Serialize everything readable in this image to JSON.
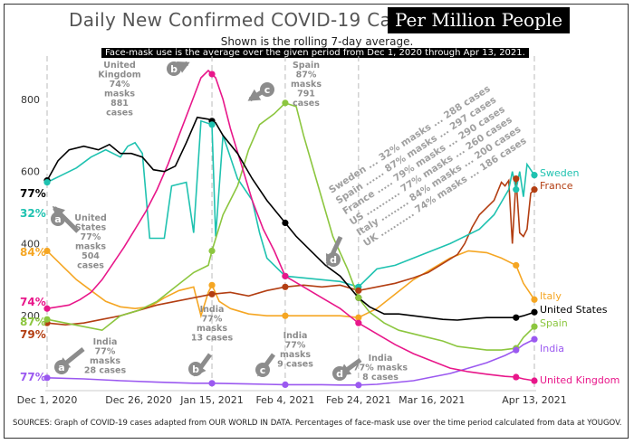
{
  "title": "Daily New Confirmed COVID-19 Cases",
  "title_box": "Per   Million People",
  "subtitle": "Shown is the rolling 7-day average.",
  "mask_note": "Face-mask use is the average over the given period from Dec 1, 2020 through Apr 13, 2021.",
  "sources": "SOURCES: Graph of COVID-19 cases adapted from OUR WORLD IN DATA.  Percentages of face-mask use over the time period calculated from data at YOUGOV.",
  "colors": {
    "United States": "#000000",
    "Sweden": "#1fc2b0",
    "France": "#b33e12",
    "Italy": "#f5a623",
    "Spain": "#8cc63f",
    "India": "#9b59f0",
    "United Kingdom": "#e8178a",
    "annotation": "#8c8c8c"
  },
  "chart_data": {
    "type": "line",
    "title": "Daily New Confirmed COVID-19 Cases Per Million People",
    "xlabel": "",
    "ylabel": "",
    "ylim": [
      0,
      900
    ],
    "yticks": [
      200,
      400,
      600,
      800
    ],
    "xlim": [
      0,
      133
    ],
    "xticks": [
      {
        "day": 0,
        "label": "Dec 1, 2020"
      },
      {
        "day": 25,
        "label": "Dec 26, 2020"
      },
      {
        "day": 45,
        "label": "Jan 15, 2021"
      },
      {
        "day": 65,
        "label": "Feb 4, 2021"
      },
      {
        "day": 85,
        "label": "Feb 24, 2021"
      },
      {
        "day": 105,
        "label": "Mar 16, 2021"
      },
      {
        "day": 133,
        "label": "Apr 13, 2021"
      }
    ],
    "vlines": [
      0,
      45,
      65,
      85,
      133
    ],
    "marker_days": [
      0,
      45,
      65,
      85,
      128,
      133
    ],
    "series": [
      {
        "name": "United States",
        "start_label": "77%",
        "points": [
          [
            0,
            575
          ],
          [
            3,
            630
          ],
          [
            6,
            660
          ],
          [
            10,
            670
          ],
          [
            14,
            660
          ],
          [
            17,
            675
          ],
          [
            20,
            650
          ],
          [
            23,
            650
          ],
          [
            26,
            640
          ],
          [
            29,
            605
          ],
          [
            32,
            600
          ],
          [
            35,
            615
          ],
          [
            38,
            680
          ],
          [
            41,
            750
          ],
          [
            44,
            745
          ],
          [
            46,
            735
          ],
          [
            48,
            700
          ],
          [
            52,
            650
          ],
          [
            56,
            580
          ],
          [
            60,
            520
          ],
          [
            64,
            470
          ],
          [
            68,
            420
          ],
          [
            72,
            380
          ],
          [
            76,
            340
          ],
          [
            80,
            310
          ],
          [
            85,
            250
          ],
          [
            88,
            225
          ],
          [
            92,
            205
          ],
          [
            96,
            205
          ],
          [
            100,
            200
          ],
          [
            104,
            195
          ],
          [
            108,
            190
          ],
          [
            112,
            188
          ],
          [
            116,
            192
          ],
          [
            120,
            195
          ],
          [
            124,
            195
          ],
          [
            128,
            195
          ],
          [
            130,
            200
          ],
          [
            133,
            210
          ]
        ]
      },
      {
        "name": "Sweden",
        "start_label": "32%",
        "points": [
          [
            0,
            570
          ],
          [
            4,
            590
          ],
          [
            8,
            610
          ],
          [
            12,
            640
          ],
          [
            16,
            660
          ],
          [
            20,
            640
          ],
          [
            22,
            670
          ],
          [
            24,
            680
          ],
          [
            26,
            650
          ],
          [
            28,
            415
          ],
          [
            32,
            415
          ],
          [
            34,
            560
          ],
          [
            38,
            570
          ],
          [
            40,
            430
          ],
          [
            42,
            740
          ],
          [
            45,
            730
          ],
          [
            46,
            420
          ],
          [
            48,
            700
          ],
          [
            50,
            640
          ],
          [
            52,
            580
          ],
          [
            56,
            520
          ],
          [
            58,
            430
          ],
          [
            60,
            360
          ],
          [
            65,
            310
          ],
          [
            70,
            305
          ],
          [
            75,
            300
          ],
          [
            80,
            295
          ],
          [
            85,
            280
          ],
          [
            90,
            330
          ],
          [
            95,
            340
          ],
          [
            100,
            360
          ],
          [
            105,
            380
          ],
          [
            110,
            400
          ],
          [
            114,
            420
          ],
          [
            118,
            440
          ],
          [
            122,
            480
          ],
          [
            126,
            550
          ],
          [
            127,
            600
          ],
          [
            128,
            550
          ],
          [
            129,
            600
          ],
          [
            130,
            530
          ],
          [
            131,
            620
          ],
          [
            133,
            590
          ]
        ]
      },
      {
        "name": "France",
        "start_label": "79%",
        "points": [
          [
            0,
            180
          ],
          [
            5,
            175
          ],
          [
            10,
            180
          ],
          [
            15,
            190
          ],
          [
            20,
            200
          ],
          [
            25,
            215
          ],
          [
            30,
            230
          ],
          [
            35,
            240
          ],
          [
            40,
            250
          ],
          [
            45,
            260
          ],
          [
            50,
            265
          ],
          [
            55,
            255
          ],
          [
            60,
            270
          ],
          [
            65,
            280
          ],
          [
            70,
            285
          ],
          [
            75,
            280
          ],
          [
            80,
            285
          ],
          [
            85,
            270
          ],
          [
            90,
            280
          ],
          [
            95,
            290
          ],
          [
            100,
            305
          ],
          [
            104,
            320
          ],
          [
            108,
            345
          ],
          [
            112,
            370
          ],
          [
            114,
            400
          ],
          [
            116,
            445
          ],
          [
            118,
            480
          ],
          [
            120,
            500
          ],
          [
            122,
            520
          ],
          [
            124,
            570
          ],
          [
            125,
            560
          ],
          [
            126,
            575
          ],
          [
            127,
            400
          ],
          [
            128,
            580
          ],
          [
            129,
            430
          ],
          [
            130,
            420
          ],
          [
            131,
            440
          ],
          [
            132,
            540
          ],
          [
            133,
            550
          ]
        ]
      },
      {
        "name": "Italy",
        "start_label": "84%",
        "points": [
          [
            0,
            380
          ],
          [
            4,
            340
          ],
          [
            8,
            300
          ],
          [
            12,
            270
          ],
          [
            16,
            240
          ],
          [
            20,
            225
          ],
          [
            24,
            220
          ],
          [
            28,
            225
          ],
          [
            32,
            250
          ],
          [
            36,
            270
          ],
          [
            40,
            280
          ],
          [
            42,
            200
          ],
          [
            44,
            265
          ],
          [
            45,
            285
          ],
          [
            47,
            240
          ],
          [
            50,
            220
          ],
          [
            55,
            205
          ],
          [
            60,
            200
          ],
          [
            65,
            200
          ],
          [
            70,
            200
          ],
          [
            75,
            200
          ],
          [
            80,
            200
          ],
          [
            85,
            195
          ],
          [
            90,
            220
          ],
          [
            95,
            260
          ],
          [
            100,
            300
          ],
          [
            105,
            330
          ],
          [
            110,
            360
          ],
          [
            115,
            380
          ],
          [
            120,
            375
          ],
          [
            124,
            360
          ],
          [
            128,
            340
          ],
          [
            130,
            290
          ],
          [
            133,
            245
          ]
        ]
      },
      {
        "name": "Spain",
        "start_label": "87%",
        "points": [
          [
            0,
            190
          ],
          [
            5,
            180
          ],
          [
            10,
            170
          ],
          [
            15,
            160
          ],
          [
            20,
            200
          ],
          [
            25,
            215
          ],
          [
            30,
            240
          ],
          [
            35,
            280
          ],
          [
            40,
            320
          ],
          [
            44,
            340
          ],
          [
            45,
            380
          ],
          [
            48,
            480
          ],
          [
            52,
            560
          ],
          [
            55,
            660
          ],
          [
            58,
            730
          ],
          [
            62,
            760
          ],
          [
            65,
            790
          ],
          [
            68,
            780
          ],
          [
            70,
            700
          ],
          [
            74,
            560
          ],
          [
            78,
            420
          ],
          [
            82,
            330
          ],
          [
            85,
            250
          ],
          [
            88,
            210
          ],
          [
            92,
            180
          ],
          [
            96,
            160
          ],
          [
            100,
            150
          ],
          [
            104,
            140
          ],
          [
            108,
            130
          ],
          [
            112,
            115
          ],
          [
            116,
            110
          ],
          [
            120,
            105
          ],
          [
            124,
            105
          ],
          [
            128,
            110
          ],
          [
            130,
            140
          ],
          [
            133,
            170
          ]
        ]
      },
      {
        "name": "India",
        "start_label": "77%",
        "points": [
          [
            0,
            28
          ],
          [
            10,
            25
          ],
          [
            20,
            20
          ],
          [
            30,
            16
          ],
          [
            40,
            13
          ],
          [
            45,
            13
          ],
          [
            50,
            12
          ],
          [
            55,
            11
          ],
          [
            60,
            10
          ],
          [
            65,
            9
          ],
          [
            70,
            9
          ],
          [
            75,
            9
          ],
          [
            80,
            8
          ],
          [
            85,
            8
          ],
          [
            90,
            10
          ],
          [
            95,
            15
          ],
          [
            100,
            20
          ],
          [
            105,
            30
          ],
          [
            110,
            40
          ],
          [
            115,
            55
          ],
          [
            120,
            70
          ],
          [
            125,
            90
          ],
          [
            128,
            105
          ],
          [
            130,
            120
          ],
          [
            133,
            135
          ]
        ]
      },
      {
        "name": "United Kingdom",
        "start_label": "74%",
        "points": [
          [
            0,
            220
          ],
          [
            3,
            225
          ],
          [
            6,
            230
          ],
          [
            9,
            245
          ],
          [
            12,
            265
          ],
          [
            15,
            300
          ],
          [
            18,
            345
          ],
          [
            21,
            390
          ],
          [
            24,
            440
          ],
          [
            27,
            490
          ],
          [
            30,
            550
          ],
          [
            33,
            620
          ],
          [
            36,
            700
          ],
          [
            39,
            780
          ],
          [
            42,
            860
          ],
          [
            44,
            880
          ],
          [
            46,
            860
          ],
          [
            48,
            800
          ],
          [
            50,
            720
          ],
          [
            53,
            620
          ],
          [
            56,
            520
          ],
          [
            59,
            440
          ],
          [
            62,
            380
          ],
          [
            65,
            310
          ],
          [
            70,
            280
          ],
          [
            75,
            250
          ],
          [
            80,
            220
          ],
          [
            85,
            180
          ],
          [
            90,
            150
          ],
          [
            95,
            120
          ],
          [
            100,
            95
          ],
          [
            105,
            75
          ],
          [
            110,
            55
          ],
          [
            115,
            45
          ],
          [
            120,
            38
          ],
          [
            125,
            32
          ],
          [
            128,
            30
          ],
          [
            130,
            25
          ],
          [
            133,
            20
          ]
        ]
      }
    ],
    "end_labels": [
      "Sweden",
      "France",
      "Italy",
      "United States",
      "Spain",
      "India",
      "United Kingdom"
    ],
    "diagonal_text": [
      "Sweden ... 32% masks ... 288 cases",
      "Spain ...... 87% masks ... 297 cases",
      "France ..... 79% masks ... 290 cases",
      "US ........... 77% masks ... 260 cases",
      "Italy ......... 84% masks ... 200 cases",
      "UK ........... 74% masks ... 186 cases"
    ],
    "callouts": [
      {
        "letter": "a",
        "lines": [
          "United",
          "States",
          "77%",
          "masks",
          "504",
          "cases"
        ]
      },
      {
        "letter": "b",
        "lines": [
          "United",
          "Kingdom",
          "74%",
          "masks",
          "881",
          "cases"
        ]
      },
      {
        "letter": "c",
        "lines": [
          "Spain",
          "87%",
          "masks",
          "791",
          "cases"
        ]
      },
      {
        "letter": "d",
        "lines": []
      },
      {
        "letter": "a",
        "lines": [
          "India",
          "77%",
          "masks",
          "28 cases"
        ]
      },
      {
        "letter": "b",
        "lines": [
          "India",
          "77%",
          "masks",
          "13 cases"
        ]
      },
      {
        "letter": "c",
        "lines": [
          "India",
          "77%",
          "masks",
          "9 cases"
        ]
      },
      {
        "letter": "d",
        "lines": [
          "India",
          "77% masks",
          "8 cases"
        ]
      }
    ]
  }
}
